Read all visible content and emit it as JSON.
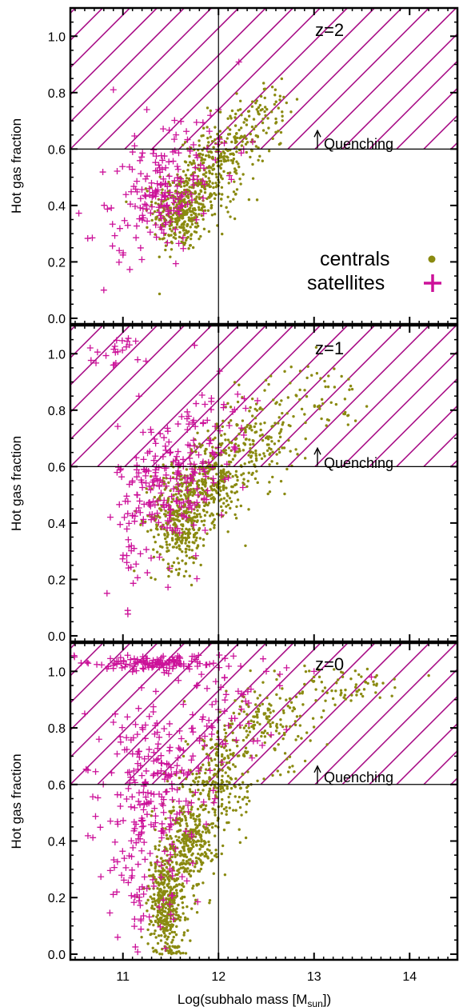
{
  "figure": {
    "xlabel": "Log(subhalo mass [M",
    "xlabel_sub": "sun",
    "xlabel_end": "])",
    "ylabel": "Hot gas fraction",
    "quenching_label": "Quenching",
    "legend": {
      "centrals": "centrals",
      "satellites": "satellites"
    }
  },
  "colors": {
    "centrals": "#8a8a10",
    "satellites": "#cc1199",
    "hatch": "#aa1188"
  },
  "chart_data": [
    {
      "type": "scatter",
      "title": "z=2",
      "xlim": [
        10.45,
        14.5
      ],
      "ylim": [
        -0.02,
        1.1
      ],
      "xticks": [
        11,
        12,
        13,
        14
      ],
      "yticks": [
        0.0,
        0.2,
        0.4,
        0.6,
        0.8,
        1.0
      ],
      "ytick_labels": [
        "0.0",
        "0.2",
        "0.4",
        "0.6",
        "0.8",
        "1.0"
      ],
      "quenching_threshold": 0.6,
      "vertical_line_x": 12.0,
      "legend_position": "right",
      "series": [
        {
          "name": "centrals",
          "clusters": [
            {
              "cx": 11.6,
              "cy": 0.38,
              "sx": 0.14,
              "sy": 0.07,
              "n": 350
            },
            {
              "cx": 11.9,
              "cy": 0.5,
              "sx": 0.15,
              "sy": 0.07,
              "n": 220
            },
            {
              "cx": 12.2,
              "cy": 0.63,
              "sx": 0.15,
              "sy": 0.07,
              "n": 120
            },
            {
              "cx": 12.55,
              "cy": 0.74,
              "sx": 0.15,
              "sy": 0.05,
              "n": 45
            }
          ]
        },
        {
          "name": "satellites",
          "clusters": [
            {
              "cx": 11.35,
              "cy": 0.43,
              "sx": 0.22,
              "sy": 0.09,
              "n": 140
            },
            {
              "cx": 11.8,
              "cy": 0.6,
              "sx": 0.25,
              "sy": 0.09,
              "n": 45
            },
            {
              "cx": 10.95,
              "cy": 0.28,
              "sx": 0.18,
              "sy": 0.07,
              "n": 12
            }
          ],
          "points": [
            [
              10.9,
              0.81
            ],
            [
              10.8,
              0.1
            ],
            [
              11.25,
              0.74
            ],
            [
              12.0,
              0.74
            ]
          ]
        }
      ]
    },
    {
      "type": "scatter",
      "title": "z=1",
      "xlim": [
        10.45,
        14.5
      ],
      "ylim": [
        -0.02,
        1.1
      ],
      "xticks": [
        11,
        12,
        13,
        14
      ],
      "yticks": [
        0.0,
        0.2,
        0.4,
        0.6,
        0.8,
        1.0
      ],
      "ytick_labels": [
        "0.0",
        "0.2",
        "0.4",
        "0.6",
        "0.8",
        "1.0"
      ],
      "quenching_threshold": 0.6,
      "vertical_line_x": 12.0,
      "series": [
        {
          "name": "centrals",
          "clusters": [
            {
              "cx": 11.6,
              "cy": 0.42,
              "sx": 0.15,
              "sy": 0.09,
              "n": 380
            },
            {
              "cx": 11.95,
              "cy": 0.55,
              "sx": 0.16,
              "sy": 0.08,
              "n": 280
            },
            {
              "cx": 12.4,
              "cy": 0.7,
              "sx": 0.2,
              "sy": 0.08,
              "n": 160
            },
            {
              "cx": 13.0,
              "cy": 0.85,
              "sx": 0.25,
              "sy": 0.06,
              "n": 60
            }
          ]
        },
        {
          "name": "satellites",
          "clusters": [
            {
              "cx": 11.45,
              "cy": 0.52,
              "sx": 0.25,
              "sy": 0.12,
              "n": 190
            },
            {
              "cx": 11.0,
              "cy": 1.01,
              "sx": 0.18,
              "sy": 0.03,
              "n": 22
            },
            {
              "cx": 11.8,
              "cy": 0.7,
              "sx": 0.3,
              "sy": 0.1,
              "n": 60
            },
            {
              "cx": 11.1,
              "cy": 0.3,
              "sx": 0.15,
              "sy": 0.1,
              "n": 16
            }
          ],
          "points": [
            [
              11.05,
              0.09
            ],
            [
              11.75,
              1.03
            ]
          ]
        }
      ]
    },
    {
      "type": "scatter",
      "title": "z=0",
      "xlim": [
        10.45,
        14.5
      ],
      "ylim": [
        -0.02,
        1.1
      ],
      "xticks": [
        11,
        12,
        13,
        14
      ],
      "yticks": [
        0.0,
        0.2,
        0.4,
        0.6,
        0.8,
        1.0
      ],
      "ytick_labels": [
        "0.0",
        "0.2",
        "0.4",
        "0.6",
        "0.8",
        "1.0"
      ],
      "quenching_threshold": 0.6,
      "vertical_line_x": 12.0,
      "series": [
        {
          "name": "centrals",
          "clusters": [
            {
              "cx": 11.45,
              "cy": 0.18,
              "sx": 0.1,
              "sy": 0.1,
              "n": 420
            },
            {
              "cx": 11.7,
              "cy": 0.4,
              "sx": 0.13,
              "sy": 0.1,
              "n": 330
            },
            {
              "cx": 12.0,
              "cy": 0.62,
              "sx": 0.16,
              "sy": 0.09,
              "n": 220
            },
            {
              "cx": 12.5,
              "cy": 0.82,
              "sx": 0.25,
              "sy": 0.07,
              "n": 160
            },
            {
              "cx": 13.3,
              "cy": 0.95,
              "sx": 0.3,
              "sy": 0.03,
              "n": 70
            }
          ]
        },
        {
          "name": "satellites",
          "clusters": [
            {
              "cx": 11.3,
              "cy": 1.03,
              "sx": 0.35,
              "sy": 0.015,
              "n": 120
            },
            {
              "cx": 11.3,
              "cy": 0.6,
              "sx": 0.3,
              "sy": 0.15,
              "n": 210
            },
            {
              "cx": 11.2,
              "cy": 0.25,
              "sx": 0.2,
              "sy": 0.12,
              "n": 70
            },
            {
              "cx": 12.1,
              "cy": 0.85,
              "sx": 0.3,
              "sy": 0.1,
              "n": 60
            }
          ],
          "points": [
            [
              10.6,
              0.85
            ],
            [
              10.75,
              0.76
            ],
            [
              10.9,
              0.82
            ],
            [
              12.5,
              1.0
            ],
            [
              13.0,
              1.0
            ],
            [
              13.6,
              0.98
            ]
          ]
        }
      ]
    }
  ]
}
